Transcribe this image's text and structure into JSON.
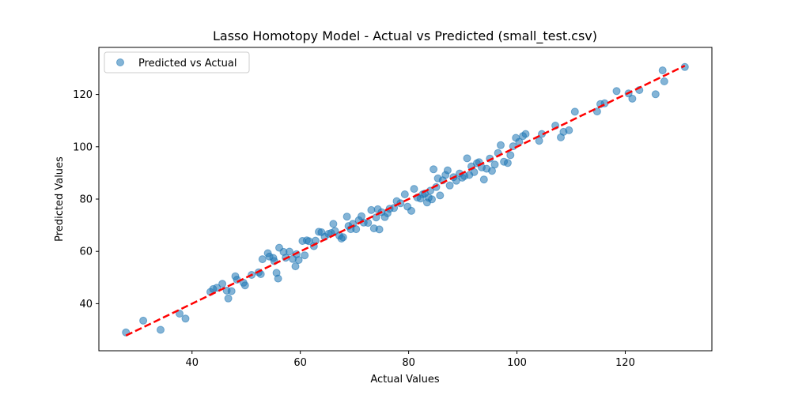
{
  "chart_data": {
    "type": "scatter",
    "title": "Lasso Homotopy Model - Actual vs Predicted (small_test.csv)",
    "xlabel": "Actual Values",
    "ylabel": "Predicted Values",
    "xlim": [
      22.8,
      136.0
    ],
    "ylim": [
      22.0,
      138.0
    ],
    "xticks": [
      40,
      60,
      80,
      100,
      120
    ],
    "yticks": [
      40,
      60,
      80,
      100,
      120
    ],
    "grid": false,
    "legend": {
      "position": "top-left",
      "label": "Predicted vs Actual"
    },
    "series": [
      {
        "name": "Predicted vs Actual",
        "kind": "scatter",
        "color": "#1f77b4",
        "alpha": 0.55,
        "x": [
          27.8,
          31.0,
          34.2,
          37.7,
          38.8,
          43.4,
          43.9,
          44.6,
          45.6,
          46.4,
          46.7,
          47.3,
          48.0,
          48.3,
          49.5,
          49.8,
          51.0,
          52.3,
          52.7,
          53.0,
          54.0,
          54.3,
          55.0,
          55.2,
          55.6,
          55.9,
          56.1,
          56.9,
          57.3,
          58.0,
          58.6,
          59.1,
          59.3,
          59.7,
          60.4,
          60.8,
          61.2,
          61.6,
          62.5,
          62.8,
          63.4,
          63.9,
          64.5,
          65.2,
          65.7,
          66.1,
          66.4,
          67.2,
          67.6,
          67.9,
          68.6,
          68.9,
          69.3,
          69.7,
          70.3,
          70.8,
          71.3,
          71.7,
          72.5,
          73.1,
          73.6,
          74.0,
          74.3,
          74.6,
          75.0,
          75.6,
          76.1,
          76.5,
          77.3,
          77.8,
          78.5,
          79.3,
          79.8,
          80.5,
          81.0,
          81.6,
          82.2,
          82.6,
          83.0,
          83.4,
          83.7,
          84.0,
          84.3,
          84.6,
          85.1,
          85.4,
          85.8,
          86.3,
          86.8,
          87.2,
          87.6,
          88.3,
          88.8,
          89.4,
          89.9,
          90.3,
          90.8,
          91.2,
          91.6,
          92.1,
          92.6,
          93.0,
          93.5,
          93.9,
          94.4,
          95.0,
          95.4,
          95.9,
          96.5,
          97.0,
          97.6,
          98.3,
          98.8,
          99.3,
          99.8,
          100.4,
          101.1,
          101.6,
          104.1,
          104.6,
          107.1,
          108.1,
          108.6,
          109.6,
          110.7,
          114.8,
          115.4,
          116.2,
          118.4,
          120.6,
          121.3,
          122.6,
          125.6,
          126.9,
          127.2,
          131.0
        ],
        "y": [
          29.0,
          33.5,
          30.0,
          36.2,
          34.3,
          44.5,
          45.6,
          46.1,
          47.6,
          45.0,
          42.0,
          44.8,
          50.5,
          49.2,
          48.0,
          47.0,
          51.0,
          52.0,
          51.3,
          57.0,
          59.3,
          58.0,
          57.5,
          56.3,
          51.8,
          49.6,
          61.4,
          59.8,
          57.6,
          59.9,
          57.1,
          54.3,
          58.9,
          56.7,
          64.0,
          58.5,
          64.2,
          63.9,
          62.0,
          64.1,
          67.5,
          67.3,
          65.6,
          66.7,
          67.0,
          70.5,
          67.8,
          66.0,
          64.9,
          65.4,
          73.3,
          69.7,
          68.5,
          70.5,
          68.5,
          71.9,
          73.4,
          71.0,
          70.9,
          75.8,
          68.8,
          73.0,
          76.1,
          68.4,
          75.0,
          73.1,
          74.6,
          76.3,
          76.6,
          79.2,
          78.4,
          81.8,
          77.1,
          75.5,
          83.9,
          80.6,
          80.2,
          81.8,
          82.1,
          78.7,
          80.5,
          83.2,
          79.9,
          91.4,
          84.6,
          87.9,
          81.4,
          87.2,
          89.2,
          91.0,
          85.2,
          88.4,
          87.0,
          89.8,
          88.2,
          88.8,
          95.6,
          89.2,
          92.5,
          90.3,
          93.7,
          94.1,
          92.1,
          87.5,
          91.6,
          95.5,
          90.8,
          93.2,
          97.6,
          100.6,
          94.3,
          93.8,
          96.8,
          100.2,
          103.4,
          101.9,
          104.1,
          104.9,
          102.3,
          104.9,
          108.1,
          103.6,
          105.7,
          106.3,
          113.4,
          113.5,
          116.3,
          116.6,
          121.3,
          120.4,
          118.4,
          121.7,
          120.1,
          129.2,
          125.0,
          130.5
        ]
      },
      {
        "name": "",
        "kind": "line",
        "style": "dashed",
        "color": "#ff0000",
        "x": [
          27.8,
          131.0
        ],
        "y": [
          27.8,
          131.0
        ]
      }
    ]
  }
}
